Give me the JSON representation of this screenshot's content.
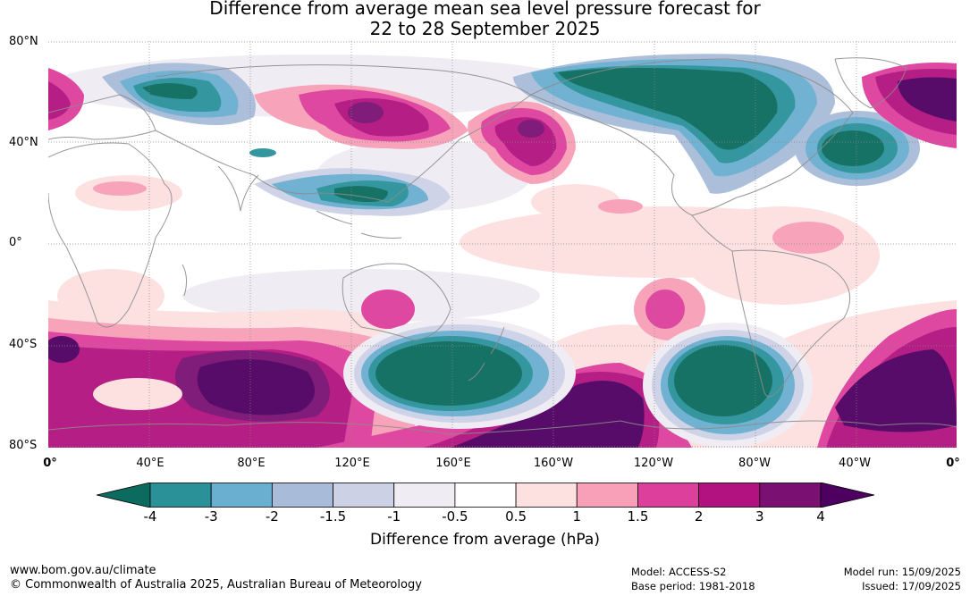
{
  "title": {
    "line1": "Difference from average mean sea level pressure forecast for",
    "line2": "22 to 28 September 2025"
  },
  "axes": {
    "lat_labels": [
      "80°N",
      "40°N",
      "0°",
      "40°S",
      "80°S"
    ],
    "lon_labels": [
      "0°",
      "40°E",
      "80°E",
      "120°E",
      "160°E",
      "160°W",
      "120°W",
      "80°W",
      "40°W",
      "0°"
    ]
  },
  "colorbar": {
    "ticks": [
      "-4",
      "-3",
      "-2",
      "-1.5",
      "-1",
      "-0.5",
      "0.5",
      "1",
      "1.5",
      "2",
      "3",
      "4"
    ],
    "colors": [
      "#0b6b5e",
      "#2a9199",
      "#6aaed0",
      "#a8bcd9",
      "#cdd1e6",
      "#efecf3",
      "#ffffff",
      "#fde0e0",
      "#f7a0b8",
      "#dd3f9c",
      "#b2127f",
      "#7a1072",
      "#4d0060"
    ],
    "label": "Difference from average (hPa)"
  },
  "footer": {
    "website": "www.bom.gov.au/climate",
    "copyright": "© Commonwealth of Australia 2025, Australian Bureau of Meteorology",
    "model": "Model: ACCESS-S2",
    "base_period": "Base period: 1981-2018",
    "model_run": "Model run: 15/09/2025",
    "issued": "Issued: 17/09/2025"
  }
}
